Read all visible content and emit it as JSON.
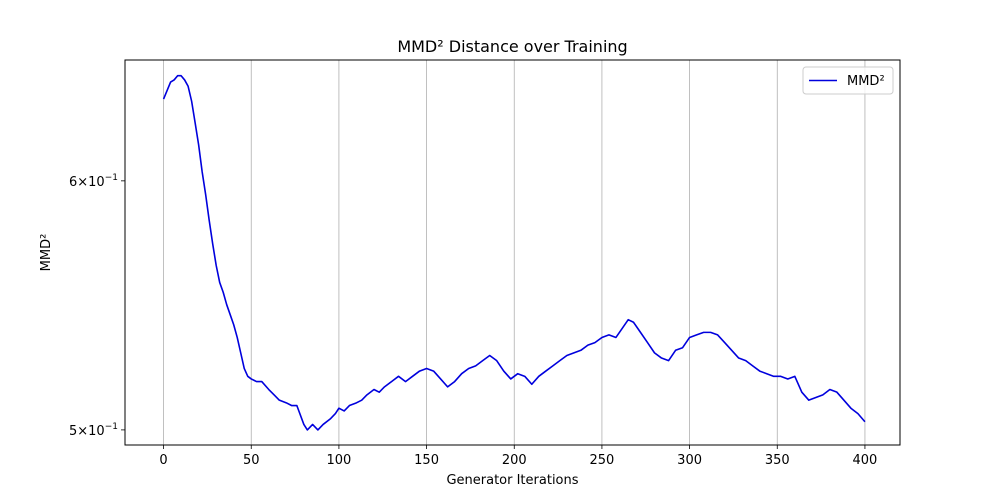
{
  "chart_data": {
    "type": "line",
    "title": "MMD² Distance over Training",
    "xlabel": "Generator Iterations",
    "ylabel": "MMD²",
    "xlim": [
      -22,
      420
    ],
    "ylim": [
      0.4945,
      0.6555
    ],
    "yscale": "log",
    "grid": "x-axis vertical lines",
    "legend": "top-right",
    "x_ticks": [
      0,
      50,
      100,
      150,
      200,
      250,
      300,
      350,
      400
    ],
    "x_tick_labels": [
      "0",
      "50",
      "100",
      "150",
      "200",
      "250",
      "300",
      "350",
      "400"
    ],
    "y_ticks": [
      0.5,
      0.6
    ],
    "y_tick_labels": [
      {
        "mantissa": "5",
        "times": "×",
        "base": "10",
        "exp": "−1"
      },
      {
        "mantissa": "6",
        "times": "×",
        "base": "10",
        "exp": "−1"
      }
    ],
    "series": [
      {
        "name": "MMD²",
        "color": "#0000dd",
        "x": [
          0,
          2,
          4,
          6,
          8,
          10,
          12,
          14,
          16,
          18,
          20,
          22,
          24,
          26,
          28,
          30,
          32,
          34,
          36,
          38,
          40,
          42,
          44,
          46,
          48,
          50,
          53,
          56,
          60,
          63,
          66,
          70,
          73,
          76,
          80,
          82,
          85,
          88,
          91,
          95,
          98,
          100,
          103,
          106,
          110,
          113,
          116,
          120,
          123,
          126,
          130,
          134,
          138,
          142,
          146,
          150,
          154,
          158,
          162,
          166,
          170,
          174,
          178,
          182,
          186,
          190,
          194,
          198,
          202,
          206,
          210,
          214,
          218,
          222,
          226,
          230,
          234,
          238,
          242,
          246,
          250,
          254,
          258,
          262,
          265,
          268,
          272,
          276,
          280,
          284,
          288,
          292,
          296,
          300,
          304,
          308,
          312,
          316,
          320,
          324,
          328,
          332,
          336,
          340,
          344,
          348,
          352,
          356,
          360,
          364,
          368,
          372,
          376,
          380,
          384,
          388,
          392,
          396,
          400
        ],
        "values": [
          0.637,
          0.641,
          0.645,
          0.646,
          0.648,
          0.648,
          0.646,
          0.643,
          0.636,
          0.626,
          0.616,
          0.604,
          0.594,
          0.583,
          0.573,
          0.564,
          0.557,
          0.553,
          0.548,
          0.544,
          0.54,
          0.535,
          0.529,
          0.523,
          0.52,
          0.519,
          0.518,
          0.518,
          0.515,
          0.513,
          0.511,
          0.51,
          0.509,
          0.509,
          0.502,
          0.5,
          0.502,
          0.5,
          0.502,
          0.504,
          0.506,
          0.508,
          0.507,
          0.509,
          0.51,
          0.511,
          0.513,
          0.515,
          0.514,
          0.516,
          0.518,
          0.52,
          0.518,
          0.52,
          0.522,
          0.523,
          0.522,
          0.519,
          0.516,
          0.518,
          0.521,
          0.523,
          0.524,
          0.526,
          0.528,
          0.526,
          0.522,
          0.519,
          0.521,
          0.52,
          0.517,
          0.52,
          0.522,
          0.524,
          0.526,
          0.528,
          0.529,
          0.53,
          0.532,
          0.533,
          0.535,
          0.536,
          0.535,
          0.539,
          0.542,
          0.541,
          0.537,
          0.533,
          0.529,
          0.527,
          0.526,
          0.53,
          0.531,
          0.535,
          0.536,
          0.537,
          0.537,
          0.536,
          0.533,
          0.53,
          0.527,
          0.526,
          0.524,
          0.522,
          0.521,
          0.52,
          0.52,
          0.519,
          0.52,
          0.514,
          0.511,
          0.512,
          0.513,
          0.515,
          0.514,
          0.511,
          0.508,
          0.506,
          0.503
        ]
      }
    ]
  }
}
